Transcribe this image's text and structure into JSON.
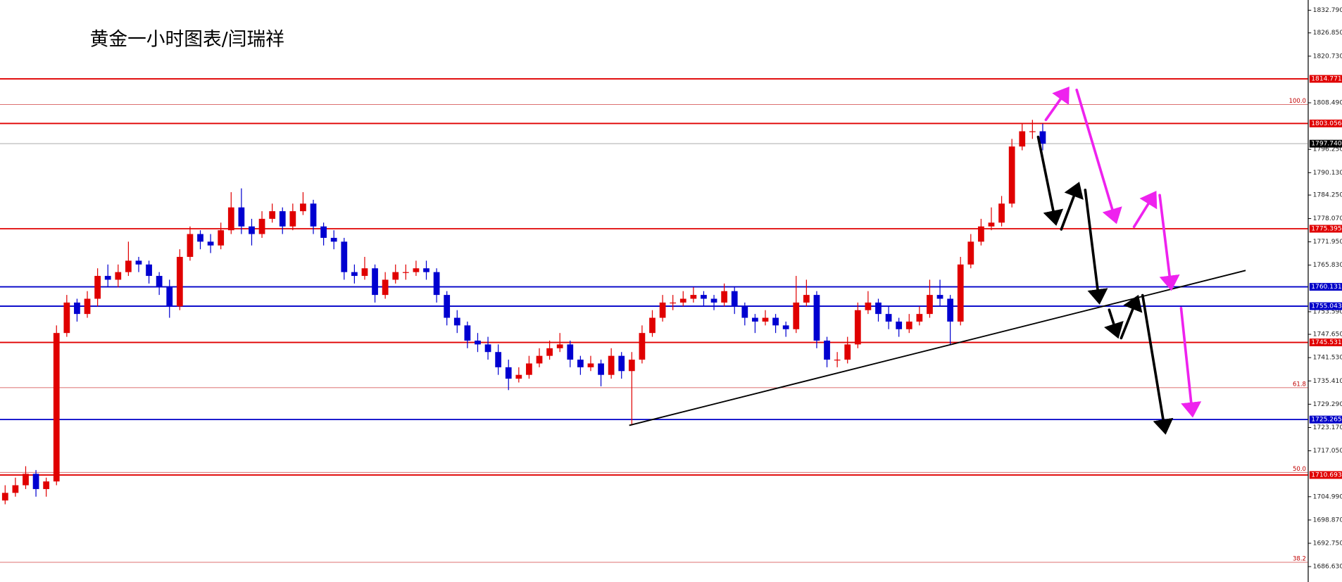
{
  "chart_data": {
    "type": "candlestick",
    "title": "黄金一小时图表/闫瑞祥",
    "up_color": "#e00000",
    "down_color": "#0000d0",
    "xlim": [
      -0.5,
      126.8
    ],
    "ylim": [
      1682.58,
      1835.49
    ],
    "yticks": [
      {
        "value": 1832.79,
        "label": "1832.790"
      },
      {
        "value": 1826.85,
        "label": "1826.850"
      },
      {
        "value": 1820.73,
        "label": "1820.730"
      },
      {
        "value": 1808.49,
        "label": "1808.490"
      },
      {
        "value": 1796.25,
        "label": "1796.250"
      },
      {
        "value": 1790.13,
        "label": "1790.130"
      },
      {
        "value": 1784.25,
        "label": "1784.250"
      },
      {
        "value": 1778.07,
        "label": "1778.070"
      },
      {
        "value": 1771.95,
        "label": "1771.950"
      },
      {
        "value": 1765.83,
        "label": "1765.830"
      },
      {
        "value": 1753.59,
        "label": "1753.590"
      },
      {
        "value": 1747.65,
        "label": "1747.650"
      },
      {
        "value": 1741.53,
        "label": "1741.530"
      },
      {
        "value": 1735.41,
        "label": "1735.410"
      },
      {
        "value": 1729.29,
        "label": "1729.290"
      },
      {
        "value": 1723.17,
        "label": "1723.170"
      },
      {
        "value": 1717.05,
        "label": "1717.050"
      },
      {
        "value": 1704.99,
        "label": "1704.990"
      },
      {
        "value": 1698.87,
        "label": "1698.870"
      },
      {
        "value": 1692.75,
        "label": "1692.750"
      },
      {
        "value": 1686.63,
        "label": "1686.630"
      }
    ],
    "levels": [
      {
        "value": 1814.771,
        "color": "#e00000"
      },
      {
        "value": 1803.056,
        "color": "#e00000"
      },
      {
        "value": 1797.74,
        "label": "1797.740",
        "color": "#000000",
        "line_color": "#bbbbbb"
      },
      {
        "value": 1775.395,
        "color": "#e00000"
      },
      {
        "value": 1760.131,
        "color": "#0000c8"
      },
      {
        "value": 1755.043,
        "color": "#0000c8"
      },
      {
        "value": 1745.531,
        "color": "#e00000"
      },
      {
        "value": 1725.265,
        "color": "#0000c8"
      },
      {
        "value": 1710.693,
        "color": "#e00000"
      }
    ],
    "fib_levels": [
      {
        "value": 1808.06,
        "label": "100.0"
      },
      {
        "value": 1733.63,
        "label": "61.8"
      },
      {
        "value": 1711.37,
        "label": "50.0"
      },
      {
        "value": 1687.75,
        "label": "38.2"
      }
    ],
    "trendline": {
      "x": [
        60.75,
        120.75
      ],
      "y": [
        1723.73,
        1764.43
      ]
    },
    "candles": [
      [
        1704,
        1708,
        1703,
        1706
      ],
      [
        1706,
        1710,
        1705,
        1708
      ],
      [
        1708,
        1713,
        1707,
        1711
      ],
      [
        1711,
        1712,
        1705,
        1707
      ],
      [
        1707,
        1710,
        1705,
        1709
      ],
      [
        1709,
        1750,
        1708,
        1748
      ],
      [
        1748,
        1758,
        1747,
        1756
      ],
      [
        1756,
        1757,
        1751,
        1753
      ],
      [
        1753,
        1759,
        1752,
        1757
      ],
      [
        1757,
        1765,
        1755,
        1763
      ],
      [
        1763,
        1766,
        1760,
        1762
      ],
      [
        1762,
        1766,
        1760,
        1764
      ],
      [
        1764,
        1772,
        1763,
        1767
      ],
      [
        1767,
        1768,
        1764,
        1766
      ],
      [
        1766,
        1767,
        1761,
        1763
      ],
      [
        1763,
        1764,
        1758,
        1760
      ],
      [
        1760,
        1762,
        1752,
        1755
      ],
      [
        1755,
        1770,
        1754,
        1768
      ],
      [
        1768,
        1776,
        1767,
        1774
      ],
      [
        1774,
        1775,
        1770,
        1772
      ],
      [
        1772,
        1774,
        1769,
        1771
      ],
      [
        1771,
        1777,
        1770,
        1775
      ],
      [
        1775,
        1785,
        1774,
        1781
      ],
      [
        1781,
        1786,
        1774,
        1776
      ],
      [
        1776,
        1778,
        1771,
        1774
      ],
      [
        1774,
        1780,
        1773,
        1778
      ],
      [
        1778,
        1782,
        1777,
        1780
      ],
      [
        1780,
        1781,
        1774,
        1776
      ],
      [
        1776,
        1782,
        1775,
        1780
      ],
      [
        1780,
        1785,
        1779,
        1782
      ],
      [
        1782,
        1783,
        1774,
        1776
      ],
      [
        1776,
        1777,
        1771,
        1773
      ],
      [
        1773,
        1775,
        1770,
        1772
      ],
      [
        1772,
        1773,
        1762,
        1764
      ],
      [
        1764,
        1766,
        1761,
        1763
      ],
      [
        1763,
        1768,
        1762,
        1765
      ],
      [
        1765,
        1766,
        1756,
        1758
      ],
      [
        1758,
        1764,
        1757,
        1762
      ],
      [
        1762,
        1766,
        1761,
        1764
      ],
      [
        1764,
        1766,
        1762,
        1764
      ],
      [
        1764,
        1767,
        1763,
        1765
      ],
      [
        1765,
        1767,
        1762,
        1764
      ],
      [
        1764,
        1765,
        1756,
        1758
      ],
      [
        1758,
        1759,
        1750,
        1752
      ],
      [
        1752,
        1754,
        1748,
        1750
      ],
      [
        1750,
        1751,
        1744,
        1746
      ],
      [
        1746,
        1748,
        1743,
        1745
      ],
      [
        1745,
        1747,
        1741,
        1743
      ],
      [
        1743,
        1745,
        1737,
        1739
      ],
      [
        1739,
        1741,
        1733,
        1736
      ],
      [
        1736,
        1739,
        1735,
        1737
      ],
      [
        1737,
        1742,
        1736,
        1740
      ],
      [
        1740,
        1744,
        1739,
        1742
      ],
      [
        1742,
        1746,
        1741,
        1744
      ],
      [
        1744,
        1748,
        1743,
        1745
      ],
      [
        1745,
        1746,
        1739,
        1741
      ],
      [
        1741,
        1742,
        1737,
        1739
      ],
      [
        1739,
        1742,
        1738,
        1740
      ],
      [
        1740,
        1741,
        1734,
        1737
      ],
      [
        1737,
        1744,
        1736,
        1742
      ],
      [
        1742,
        1743,
        1736,
        1738
      ],
      [
        1738,
        1743,
        1723.7,
        1741
      ],
      [
        1741,
        1750,
        1740,
        1748
      ],
      [
        1748,
        1754,
        1747,
        1752
      ],
      [
        1752,
        1758,
        1751,
        1756
      ],
      [
        1756,
        1758,
        1754,
        1756
      ],
      [
        1756,
        1759,
        1755,
        1757
      ],
      [
        1757,
        1760,
        1756,
        1758
      ],
      [
        1758,
        1759,
        1755,
        1757
      ],
      [
        1757,
        1758,
        1754,
        1756
      ],
      [
        1756,
        1761,
        1755,
        1759
      ],
      [
        1759,
        1760,
        1753,
        1755
      ],
      [
        1755,
        1756,
        1750,
        1752
      ],
      [
        1752,
        1753,
        1748,
        1751
      ],
      [
        1751,
        1754,
        1750,
        1752
      ],
      [
        1752,
        1753,
        1748,
        1750
      ],
      [
        1750,
        1751,
        1747,
        1749
      ],
      [
        1749,
        1763,
        1748,
        1756
      ],
      [
        1756,
        1762,
        1755,
        1758
      ],
      [
        1758,
        1759,
        1744,
        1746
      ],
      [
        1746,
        1747,
        1739,
        1741
      ],
      [
        1741,
        1743,
        1739,
        1741
      ],
      [
        1741,
        1747,
        1740,
        1745
      ],
      [
        1745,
        1756,
        1744,
        1754
      ],
      [
        1754,
        1759,
        1753,
        1756
      ],
      [
        1756,
        1757,
        1751,
        1753
      ],
      [
        1753,
        1755,
        1749,
        1751
      ],
      [
        1751,
        1752,
        1747,
        1749
      ],
      [
        1749,
        1753,
        1748,
        1751
      ],
      [
        1751,
        1755,
        1750,
        1753
      ],
      [
        1753,
        1762,
        1752,
        1758
      ],
      [
        1758,
        1762,
        1755,
        1757
      ],
      [
        1757,
        1758,
        1745,
        1751
      ],
      [
        1751,
        1768,
        1750,
        1766
      ],
      [
        1766,
        1774,
        1765,
        1772
      ],
      [
        1772,
        1778,
        1771,
        1776
      ],
      [
        1776,
        1781,
        1775,
        1777
      ],
      [
        1777,
        1784,
        1776,
        1782
      ],
      [
        1782,
        1799,
        1781,
        1797
      ],
      [
        1797,
        1803,
        1796,
        1801
      ],
      [
        1801,
        1804,
        1799,
        1801
      ],
      [
        1801,
        1803,
        1796,
        1797.74
      ]
    ]
  }
}
